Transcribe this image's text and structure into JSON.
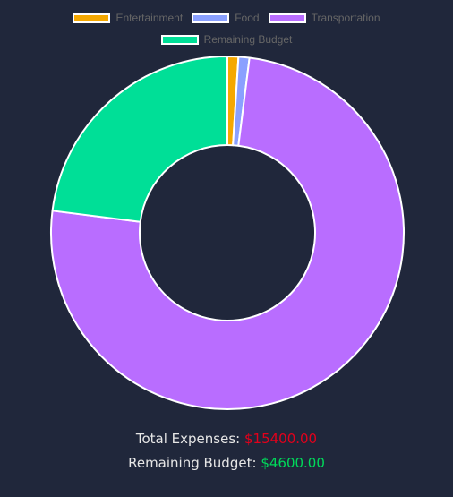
{
  "chart_data": {
    "type": "doughnut",
    "categories": [
      "Entertainment",
      "Food",
      "Transportation",
      "Remaining Budget"
    ],
    "values": [
      200,
      200,
      15000,
      4600
    ],
    "colors": [
      "#f5a800",
      "#8aa0ff",
      "#b96dff",
      "#00df97"
    ],
    "border_color": "#ffffff",
    "legend_position": "top",
    "legend_rows": [
      [
        0,
        1,
        2
      ],
      [
        3
      ]
    ]
  },
  "summary": {
    "expenses_label": "Total Expenses:",
    "expenses_value": "$15400.00",
    "expenses_color": "#e3001b",
    "budget_label": "Remaining Budget:",
    "budget_value": "$4600.00",
    "budget_color": "#00d95a"
  },
  "theme": {
    "background": "#20273b",
    "legend_text": "#666666",
    "summary_text": "#e6e6e6"
  }
}
